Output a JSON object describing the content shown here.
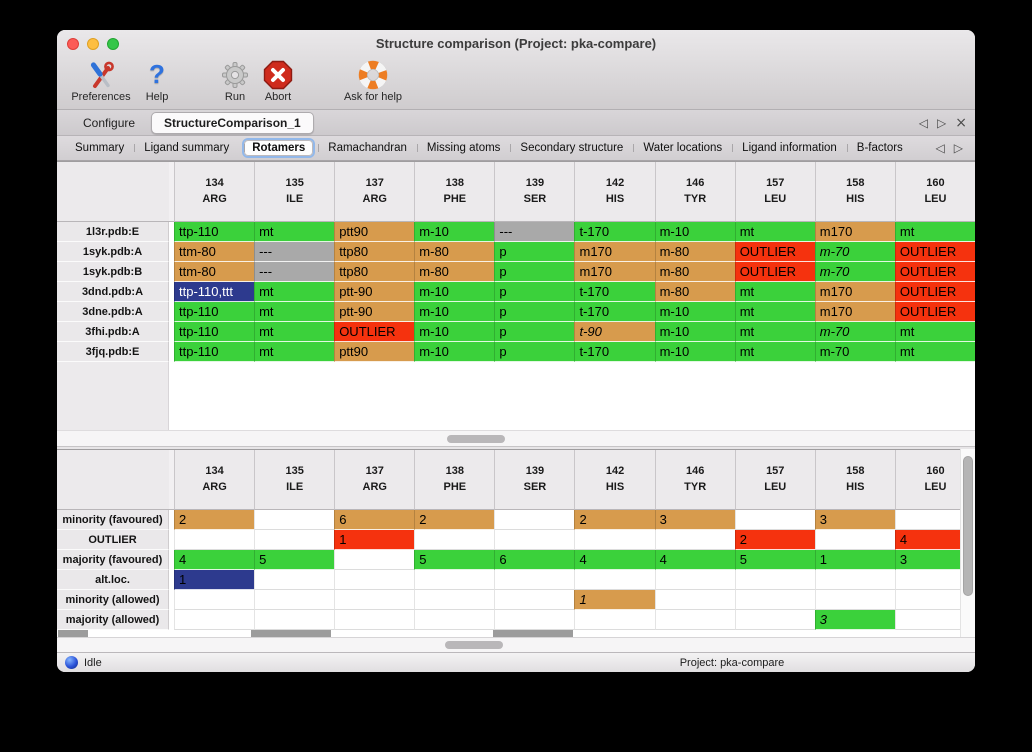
{
  "window": {
    "title": "Structure comparison (Project: pka-compare)"
  },
  "toolbar": {
    "preferences": "Preferences",
    "help": "Help",
    "run": "Run",
    "abort": "Abort",
    "ask_for_help": "Ask for help"
  },
  "document_tabs": {
    "items": [
      "Configure",
      "StructureComparison_1"
    ],
    "active_index": 1
  },
  "section_tabs": {
    "items": [
      "Summary",
      "Ligand summary",
      "Rotamers",
      "Ramachandran",
      "Missing atoms",
      "Secondary structure",
      "Water locations",
      "Ligand information",
      "B-factors"
    ],
    "active_index": 2
  },
  "icons": {
    "tab_prev": "◁",
    "tab_next": "▷",
    "tab_close": "×",
    "subtab_prev": "◁",
    "subtab_next": "▷"
  },
  "cell_colors": {
    "favoured_green": "#3bd13b",
    "minority_orange": "#d79b4d",
    "outlier_red": "#f5320e",
    "missing_gray": "#a9a9a9",
    "selection_blue": "#2d3a8e"
  },
  "residue_columns": [
    {
      "number": "134",
      "residue": "ARG"
    },
    {
      "number": "135",
      "residue": "ILE"
    },
    {
      "number": "137",
      "residue": "ARG"
    },
    {
      "number": "138",
      "residue": "PHE"
    },
    {
      "number": "139",
      "residue": "SER"
    },
    {
      "number": "142",
      "residue": "HIS"
    },
    {
      "number": "146",
      "residue": "TYR"
    },
    {
      "number": "157",
      "residue": "LEU"
    },
    {
      "number": "158",
      "residue": "HIS"
    },
    {
      "number": "160",
      "residue": "LEU"
    }
  ],
  "rotamer_table": {
    "rows": [
      {
        "label": "1l3r.pdb:E",
        "cells": [
          {
            "v": "ttp-110",
            "c": "green"
          },
          {
            "v": "mt",
            "c": "green"
          },
          {
            "v": "ptt90",
            "c": "orange"
          },
          {
            "v": "m-10",
            "c": "green"
          },
          {
            "v": "---",
            "c": "gray"
          },
          {
            "v": "t-170",
            "c": "green"
          },
          {
            "v": "m-10",
            "c": "green"
          },
          {
            "v": "mt",
            "c": "green"
          },
          {
            "v": "m170",
            "c": "orange"
          },
          {
            "v": "mt",
            "c": "green"
          }
        ]
      },
      {
        "label": "1syk.pdb:A",
        "cells": [
          {
            "v": "ttm-80",
            "c": "orange"
          },
          {
            "v": "---",
            "c": "gray"
          },
          {
            "v": "ttp80",
            "c": "orange"
          },
          {
            "v": "m-80",
            "c": "orange"
          },
          {
            "v": "p",
            "c": "green"
          },
          {
            "v": "m170",
            "c": "orange"
          },
          {
            "v": "m-80",
            "c": "orange"
          },
          {
            "v": "OUTLIER",
            "c": "red"
          },
          {
            "v": "m-70",
            "c": "green",
            "i": true
          },
          {
            "v": "OUTLIER",
            "c": "red"
          }
        ]
      },
      {
        "label": "1syk.pdb:B",
        "cells": [
          {
            "v": "ttm-80",
            "c": "orange"
          },
          {
            "v": "---",
            "c": "gray"
          },
          {
            "v": "ttp80",
            "c": "orange"
          },
          {
            "v": "m-80",
            "c": "orange"
          },
          {
            "v": "p",
            "c": "green"
          },
          {
            "v": "m170",
            "c": "orange"
          },
          {
            "v": "m-80",
            "c": "orange"
          },
          {
            "v": "OUTLIER",
            "c": "red"
          },
          {
            "v": "m-70",
            "c": "green",
            "i": true
          },
          {
            "v": "OUTLIER",
            "c": "red"
          }
        ]
      },
      {
        "label": "3dnd.pdb:A",
        "cells": [
          {
            "v": "ttp-110,ttt",
            "c": "sel"
          },
          {
            "v": "mt",
            "c": "green"
          },
          {
            "v": "ptt-90",
            "c": "orange"
          },
          {
            "v": "m-10",
            "c": "green"
          },
          {
            "v": "p",
            "c": "green"
          },
          {
            "v": "t-170",
            "c": "green"
          },
          {
            "v": "m-80",
            "c": "orange"
          },
          {
            "v": "mt",
            "c": "green"
          },
          {
            "v": "m170",
            "c": "orange"
          },
          {
            "v": "OUTLIER",
            "c": "red"
          }
        ]
      },
      {
        "label": "3dne.pdb:A",
        "cells": [
          {
            "v": "ttp-110",
            "c": "green"
          },
          {
            "v": "mt",
            "c": "green"
          },
          {
            "v": "ptt-90",
            "c": "orange"
          },
          {
            "v": "m-10",
            "c": "green"
          },
          {
            "v": "p",
            "c": "green"
          },
          {
            "v": "t-170",
            "c": "green"
          },
          {
            "v": "m-10",
            "c": "green"
          },
          {
            "v": "mt",
            "c": "green"
          },
          {
            "v": "m170",
            "c": "orange"
          },
          {
            "v": "OUTLIER",
            "c": "red"
          }
        ]
      },
      {
        "label": "3fhi.pdb:A",
        "cells": [
          {
            "v": "ttp-110",
            "c": "green"
          },
          {
            "v": "mt",
            "c": "green"
          },
          {
            "v": "OUTLIER",
            "c": "red"
          },
          {
            "v": "m-10",
            "c": "green"
          },
          {
            "v": "p",
            "c": "green"
          },
          {
            "v": "t-90",
            "c": "orange",
            "i": true
          },
          {
            "v": "m-10",
            "c": "green"
          },
          {
            "v": "mt",
            "c": "green"
          },
          {
            "v": "m-70",
            "c": "green",
            "i": true
          },
          {
            "v": "mt",
            "c": "green"
          }
        ]
      },
      {
        "label": "3fjq.pdb:E",
        "cells": [
          {
            "v": "ttp-110",
            "c": "green"
          },
          {
            "v": "mt",
            "c": "green"
          },
          {
            "v": "ptt90",
            "c": "orange"
          },
          {
            "v": "m-10",
            "c": "green"
          },
          {
            "v": "p",
            "c": "green"
          },
          {
            "v": "t-170",
            "c": "green"
          },
          {
            "v": "m-10",
            "c": "green"
          },
          {
            "v": "mt",
            "c": "green"
          },
          {
            "v": "m-70",
            "c": "green"
          },
          {
            "v": "mt",
            "c": "green"
          }
        ]
      }
    ]
  },
  "count_table": {
    "rows": [
      {
        "label": "minority (favoured)",
        "cells": [
          {
            "v": "2",
            "c": "orange"
          },
          {},
          {
            "v": "6",
            "c": "orange"
          },
          {
            "v": "2",
            "c": "orange"
          },
          {},
          {
            "v": "2",
            "c": "orange"
          },
          {
            "v": "3",
            "c": "orange"
          },
          {},
          {
            "v": "3",
            "c": "orange"
          },
          {}
        ]
      },
      {
        "label": "OUTLIER",
        "cells": [
          {},
          {},
          {
            "v": "1",
            "c": "red"
          },
          {},
          {},
          {},
          {},
          {
            "v": "2",
            "c": "red"
          },
          {},
          {
            "v": "4",
            "c": "red"
          }
        ]
      },
      {
        "label": "majority (favoured)",
        "cells": [
          {
            "v": "4",
            "c": "green"
          },
          {
            "v": "5",
            "c": "green"
          },
          {},
          {
            "v": "5",
            "c": "green"
          },
          {
            "v": "6",
            "c": "green"
          },
          {
            "v": "4",
            "c": "green"
          },
          {
            "v": "4",
            "c": "green"
          },
          {
            "v": "5",
            "c": "green"
          },
          {
            "v": "1",
            "c": "green"
          },
          {
            "v": "3",
            "c": "green"
          }
        ]
      },
      {
        "label": "alt.loc.",
        "cells": [
          {
            "v": "1",
            "c": "blue"
          },
          {},
          {},
          {},
          {},
          {},
          {},
          {},
          {},
          {}
        ]
      },
      {
        "label": "minority (allowed)",
        "cells": [
          {},
          {},
          {},
          {},
          {},
          {
            "v": "1",
            "c": "orange",
            "i": true
          },
          {},
          {},
          {},
          {}
        ]
      },
      {
        "label": "majority (allowed)",
        "cells": [
          {},
          {},
          {},
          {},
          {},
          {},
          {},
          {},
          {
            "v": "3",
            "c": "green",
            "i": true
          },
          {}
        ]
      }
    ]
  },
  "status": {
    "state": "Idle",
    "project": "Project: pka-compare"
  }
}
